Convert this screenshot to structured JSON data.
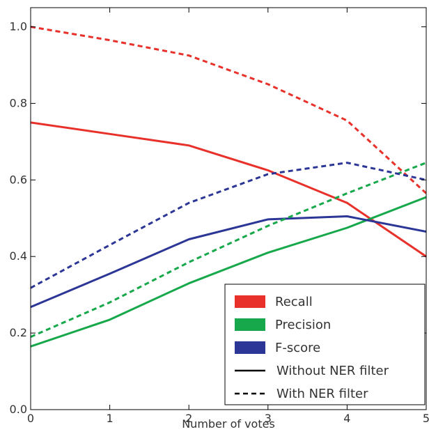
{
  "chart_data": {
    "type": "line",
    "xlabel": "Number of votes",
    "ylabel": "",
    "xlim": [
      0,
      5
    ],
    "ylim": [
      0.0,
      1.05
    ],
    "x": [
      0,
      1,
      2,
      3,
      4,
      5
    ],
    "xticks": [
      "0",
      "1",
      "2",
      "3",
      "4",
      "5"
    ],
    "yticks": [
      "0.0",
      "0.2",
      "0.4",
      "0.6",
      "0.8",
      "1.0"
    ],
    "grid": false,
    "legend_position": "bottom-right",
    "colors": {
      "recall": "#e8312a",
      "precision": "#16a84a",
      "fscore": "#2b3696"
    },
    "series": [
      {
        "metric": "Recall",
        "filter": "Without NER filter",
        "color": "#e8312a",
        "style": "solid",
        "values": [
          0.75,
          0.72,
          0.69,
          0.625,
          0.54,
          0.4
        ]
      },
      {
        "metric": "Precision",
        "filter": "Without NER filter",
        "color": "#16a84a",
        "style": "solid",
        "values": [
          0.165,
          0.235,
          0.33,
          0.41,
          0.475,
          0.555
        ]
      },
      {
        "metric": "F-score",
        "filter": "Without NER filter",
        "color": "#2b3696",
        "style": "solid",
        "values": [
          0.268,
          0.355,
          0.445,
          0.497,
          0.505,
          0.465
        ]
      },
      {
        "metric": "Recall",
        "filter": "With NER filter",
        "color": "#e8312a",
        "style": "dashed",
        "values": [
          1.0,
          0.965,
          0.925,
          0.85,
          0.755,
          0.565
        ]
      },
      {
        "metric": "Precision",
        "filter": "With NER filter",
        "color": "#16a84a",
        "style": "dashed",
        "values": [
          0.19,
          0.28,
          0.385,
          0.48,
          0.565,
          0.645
        ]
      },
      {
        "metric": "F-score",
        "filter": "With NER filter",
        "color": "#2b3696",
        "style": "dashed",
        "values": [
          0.318,
          0.43,
          0.54,
          0.615,
          0.645,
          0.6
        ]
      }
    ],
    "legend": [
      {
        "label": "Recall",
        "kind": "patch",
        "color": "#e8312a"
      },
      {
        "label": "Precision",
        "kind": "patch",
        "color": "#16a84a"
      },
      {
        "label": "F-score",
        "kind": "patch",
        "color": "#2b3696"
      },
      {
        "label": "Without NER filter",
        "kind": "line-solid",
        "color": "#000000"
      },
      {
        "label": "With NER filter",
        "kind": "line-dashed",
        "color": "#000000"
      }
    ]
  }
}
